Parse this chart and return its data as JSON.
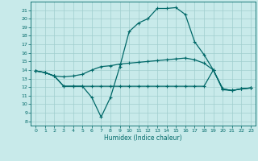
{
  "xlabel": "Humidex (Indice chaleur)",
  "xlim": [
    -0.5,
    23.5
  ],
  "ylim": [
    7.5,
    22
  ],
  "yticks": [
    8,
    9,
    10,
    11,
    12,
    13,
    14,
    15,
    16,
    17,
    18,
    19,
    20,
    21
  ],
  "xticks": [
    0,
    1,
    2,
    3,
    4,
    5,
    6,
    7,
    8,
    9,
    10,
    11,
    12,
    13,
    14,
    15,
    16,
    17,
    18,
    19,
    20,
    21,
    22,
    23
  ],
  "bg_color": "#c8eaea",
  "grid_color": "#a0cece",
  "line_color": "#006868",
  "line1_x": [
    0,
    1,
    2,
    3,
    4,
    5,
    6,
    7,
    8,
    9,
    10,
    11,
    12,
    13,
    14,
    15,
    16,
    17,
    18,
    19,
    20,
    21,
    22,
    23
  ],
  "line1_y": [
    13.9,
    13.7,
    13.3,
    12.1,
    12.1,
    12.1,
    10.8,
    8.5,
    10.8,
    14.4,
    18.5,
    19.5,
    20.0,
    21.2,
    21.2,
    21.3,
    20.5,
    17.3,
    15.8,
    14.0,
    11.7,
    11.6,
    11.8,
    11.9
  ],
  "line2_x": [
    0,
    1,
    2,
    3,
    4,
    5,
    6,
    7,
    8,
    9,
    10,
    11,
    12,
    13,
    14,
    15,
    16,
    17,
    18,
    19,
    20,
    21,
    22,
    23
  ],
  "line2_y": [
    13.9,
    13.7,
    13.3,
    13.2,
    13.3,
    13.5,
    14.0,
    14.4,
    14.5,
    14.7,
    14.8,
    14.9,
    15.0,
    15.1,
    15.2,
    15.3,
    15.4,
    15.2,
    14.8,
    14.0,
    11.8,
    11.6,
    11.8,
    11.9
  ],
  "line3_x": [
    0,
    1,
    2,
    3,
    4,
    5,
    6,
    7,
    8,
    9,
    10,
    11,
    12,
    13,
    14,
    15,
    16,
    17,
    18,
    19,
    20,
    21,
    22,
    23
  ],
  "line3_y": [
    13.9,
    13.7,
    13.3,
    12.1,
    12.1,
    12.1,
    12.1,
    12.1,
    12.1,
    12.1,
    12.1,
    12.1,
    12.1,
    12.1,
    12.1,
    12.1,
    12.1,
    12.1,
    12.1,
    14.0,
    11.8,
    11.6,
    11.8,
    11.9
  ]
}
